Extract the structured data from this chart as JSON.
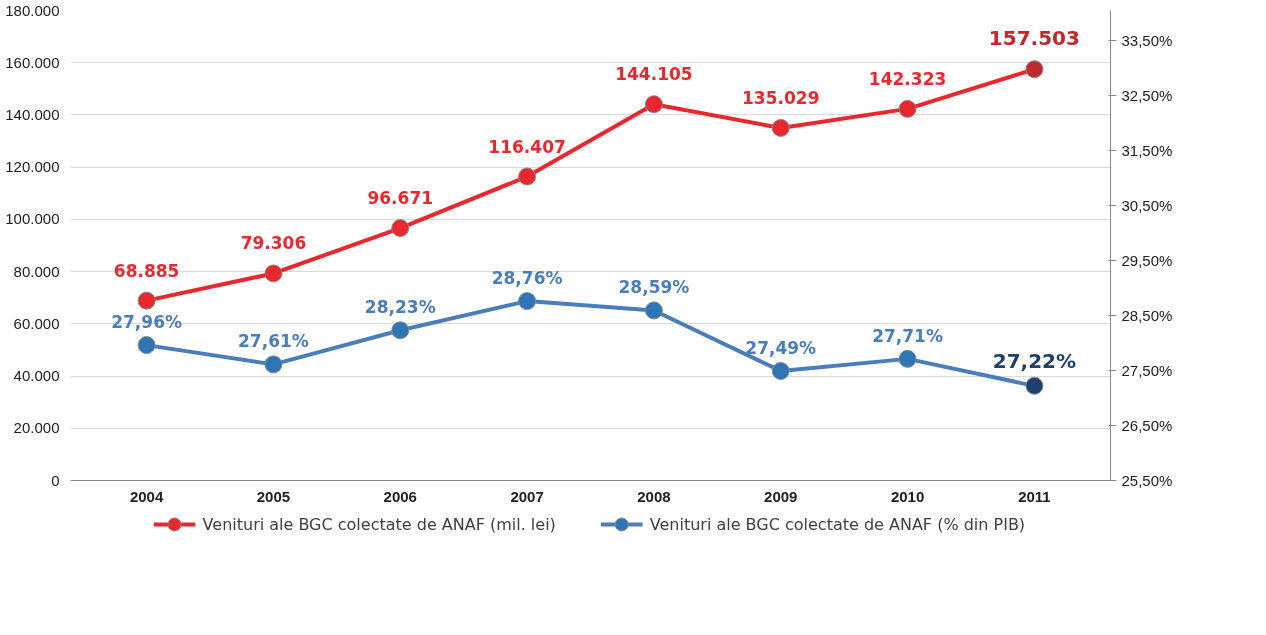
{
  "chart_data": {
    "type": "line",
    "categories": [
      "2004",
      "2005",
      "2006",
      "2007",
      "2008",
      "2009",
      "2010",
      "2011"
    ],
    "series": [
      {
        "name": "Venituri ale BGC colectate de ANAF (mil. lei)",
        "color": "#e8282e",
        "colors": [
          "#e8282e",
          "#e8282e",
          "#e8282e",
          "#e8282e",
          "#e8282e",
          "#e8282e",
          "#e8282e",
          "#c0282e"
        ],
        "values": [
          68885,
          79306,
          96671,
          116407,
          144105,
          135029,
          142323,
          157503
        ],
        "value_labels": [
          "68.885",
          "79.306",
          "96.671",
          "116.407",
          "144.105",
          "135.029",
          "142.323",
          "157.503"
        ]
      },
      {
        "name": "Venituri ale BGC colectate de ANAF (% din PIB)",
        "color": "#4a7ebb",
        "colors": [
          "#2e75b6",
          "#2e75b6",
          "#2e75b6",
          "#2e75b6",
          "#2e75b6",
          "#2e75b6",
          "#2e75b6",
          "#1f3f6e"
        ],
        "axis": "y2",
        "values": [
          27.96,
          27.61,
          28.23,
          28.76,
          28.59,
          27.49,
          27.71,
          27.22
        ],
        "value_labels": [
          "27,96%",
          "27,61%",
          "28,23%",
          "28,76%",
          "28,59%",
          "27,49%",
          "27,71%",
          "27,22%"
        ]
      }
    ],
    "ylim": [
      0,
      180000
    ],
    "yticks": [
      {
        "value": 0,
        "label": "0"
      },
      {
        "value": 20000,
        "label": "20.000"
      },
      {
        "value": 40000,
        "label": "40.000"
      },
      {
        "value": 60000,
        "label": "60.000"
      },
      {
        "value": 80000,
        "label": "80.000"
      },
      {
        "value": 100000,
        "label": "100.000"
      },
      {
        "value": 120000,
        "label": "120.000"
      },
      {
        "value": 140000,
        "label": "140.000"
      },
      {
        "value": 160000,
        "label": "160.000"
      },
      {
        "value": 180000,
        "label": "180.000"
      }
    ],
    "y2lim": [
      25.5,
      34.04
    ],
    "y2ticks": [
      {
        "value": 25.5,
        "label": "25,50%"
      },
      {
        "value": 26.5,
        "label": "26,50%"
      },
      {
        "value": 27.5,
        "label": "27,50%"
      },
      {
        "value": 28.5,
        "label": "28,50%"
      },
      {
        "value": 29.5,
        "label": "29,50%"
      },
      {
        "value": 30.5,
        "label": "30,50%"
      },
      {
        "value": 31.5,
        "label": "31,50%"
      },
      {
        "value": 32.5,
        "label": "32,50%"
      },
      {
        "value": 33.5,
        "label": "33,50%"
      }
    ],
    "grid": "y",
    "legend": "bottom",
    "marker": "circle",
    "line_style": "solid"
  }
}
